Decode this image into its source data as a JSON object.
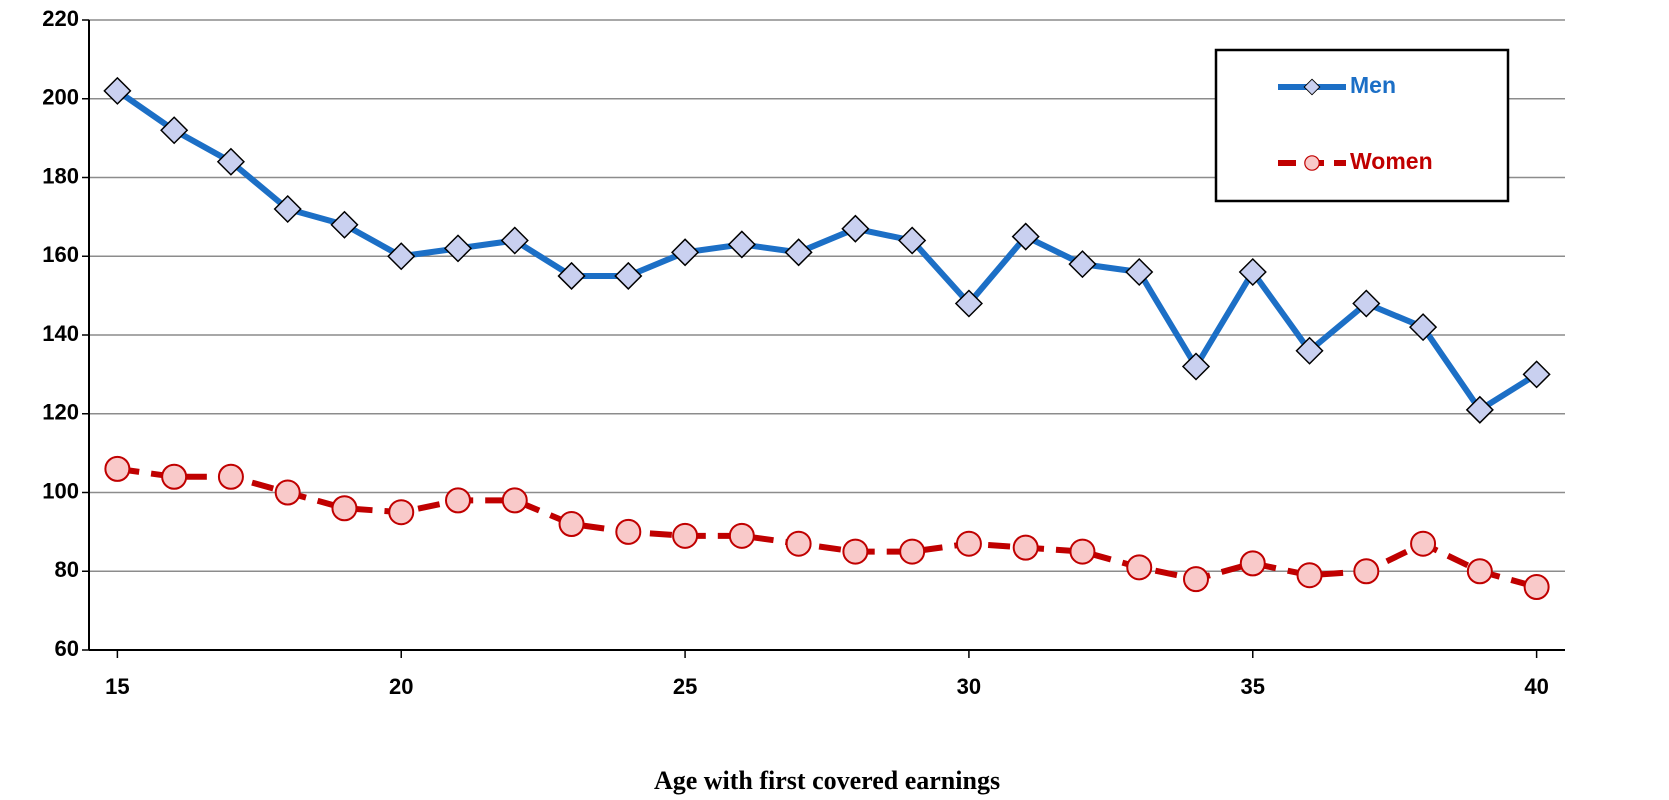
{
  "chart_data": {
    "type": "line",
    "x_label": "Age with first covered earnings",
    "x": [
      15,
      16,
      17,
      18,
      19,
      20,
      21,
      22,
      23,
      24,
      25,
      26,
      27,
      28,
      29,
      30,
      31,
      32,
      33,
      34,
      35,
      36,
      37,
      38,
      39,
      40
    ],
    "series": [
      {
        "name": "Men",
        "color": "#1c6fc6",
        "marker": "diamond",
        "marker_fill": "#c9d0f0",
        "dashed": false,
        "values": [
          202,
          192,
          184,
          172,
          168,
          160,
          162,
          164,
          155,
          155,
          161,
          163,
          161,
          167,
          164,
          148,
          165,
          158,
          156,
          132,
          156,
          136,
          148,
          142,
          121,
          130
        ]
      },
      {
        "name": "Women",
        "color": "#c00000",
        "marker": "circle",
        "marker_fill": "#f9c9c9",
        "dashed": true,
        "values": [
          106,
          104,
          104,
          100,
          96,
          95,
          98,
          98,
          92,
          90,
          89,
          89,
          87,
          85,
          85,
          87,
          86,
          85,
          81,
          78,
          82,
          79,
          80,
          87,
          80,
          76
        ]
      }
    ],
    "xlim": [
      14.5,
      40.5
    ],
    "xticks": [
      15,
      20,
      25,
      30,
      35,
      40
    ],
    "ylim": [
      60,
      220
    ],
    "yticks": [
      60,
      80,
      100,
      120,
      140,
      160,
      180,
      200,
      220
    ],
    "grid": true,
    "legend": "upper right"
  }
}
